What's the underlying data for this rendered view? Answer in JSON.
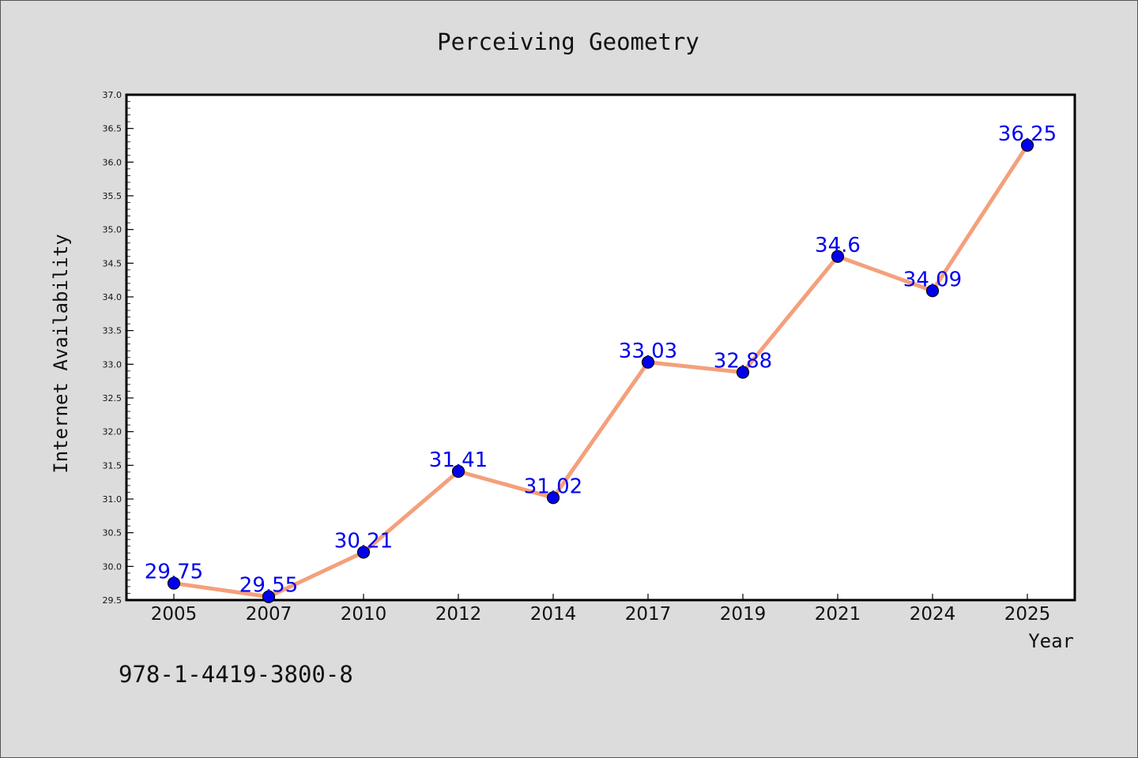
{
  "chart_data": {
    "type": "line",
    "title": "Perceiving Geometry",
    "xlabel": "Year",
    "ylabel": "Internet Availability",
    "categories": [
      "2005",
      "2007",
      "2010",
      "2012",
      "2014",
      "2017",
      "2019",
      "2021",
      "2024",
      "2025"
    ],
    "series": [
      {
        "values": [
          29.75,
          29.55,
          30.21,
          31.41,
          31.02,
          33.03,
          32.88,
          34.6,
          34.09,
          36.25
        ],
        "labels": [
          "29.75",
          "29.55",
          "30.21",
          "31.41",
          "31.02",
          "33.03",
          "32.88",
          "34.6",
          "34.09",
          "36.25"
        ]
      }
    ],
    "ylim": [
      29.5,
      37.0
    ],
    "yticks": [
      "29.5",
      "30.0",
      "30.5",
      "31.0",
      "31.5",
      "32.0",
      "32.5",
      "33.0",
      "33.5",
      "34.0",
      "34.5",
      "35.0",
      "35.5",
      "36.0",
      "36.5",
      "37.0"
    ],
    "grid": false,
    "colors": {
      "line": "#f4a07c",
      "marker": "#0000ee",
      "label": "#0000ee",
      "plot_background": "#ffffff",
      "figure_background": "#dcdcdc"
    }
  },
  "footer": {
    "isbn": "978-1-4419-3800-8"
  }
}
